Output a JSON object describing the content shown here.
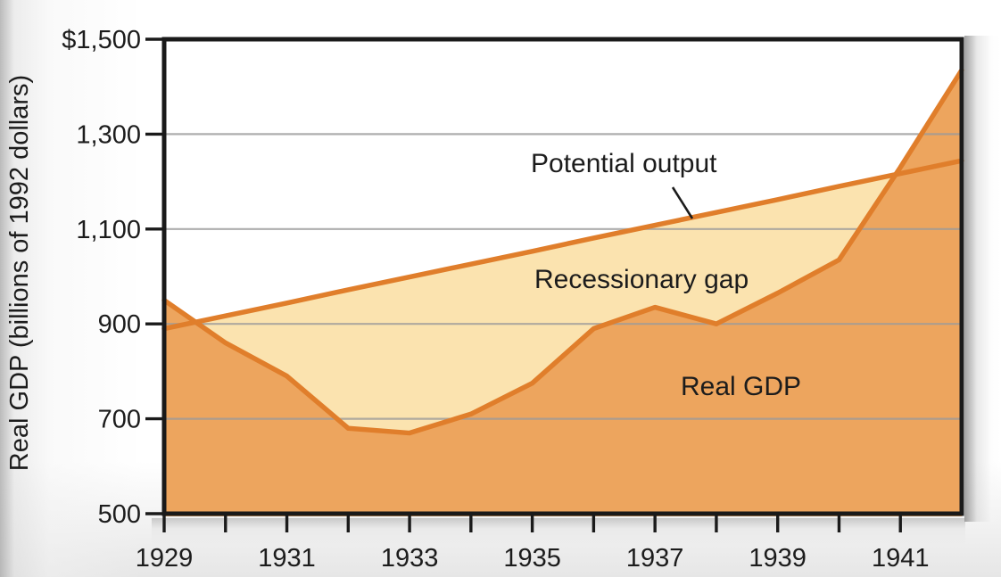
{
  "figure": {
    "y_axis_title": "Real GDP (billions of 1992 dollars)",
    "annotations": {
      "potential_output": "Potential output",
      "recessionary_gap": "Recessionary gap",
      "real_gdp": "Real GDP"
    }
  },
  "chart_data": {
    "type": "area",
    "title": "",
    "xlabel": "",
    "ylabel": "Real GDP (billions of 1992 dollars)",
    "x": [
      1929,
      1930,
      1931,
      1932,
      1933,
      1934,
      1935,
      1936,
      1937,
      1938,
      1939,
      1940,
      1941,
      1942
    ],
    "series": [
      {
        "name": "Potential output",
        "values": [
          890,
          917,
          944,
          972,
          999,
          1026,
          1053,
          1081,
          1108,
          1135,
          1162,
          1190,
          1217,
          1244
        ]
      },
      {
        "name": "Real GDP",
        "values": [
          950,
          860,
          790,
          680,
          670,
          710,
          775,
          890,
          935,
          900,
          965,
          1035,
          1230,
          1435
        ]
      }
    ],
    "xlim": [
      1929,
      1942
    ],
    "ylim": [
      500,
      1500
    ],
    "x_minor_tick_years": [
      1929,
      1930,
      1931,
      1932,
      1933,
      1934,
      1935,
      1936,
      1937,
      1938,
      1939,
      1940,
      1941
    ],
    "x_tick_labels": [
      {
        "year": 1929,
        "label": "1929"
      },
      {
        "year": 1931,
        "label": "1931"
      },
      {
        "year": 1933,
        "label": "1933"
      },
      {
        "year": 1935,
        "label": "1935"
      },
      {
        "year": 1937,
        "label": "1937"
      },
      {
        "year": 1939,
        "label": "1939"
      },
      {
        "year": 1941,
        "label": "1941"
      }
    ],
    "y_ticks": [
      {
        "value": 1500,
        "label": "$1,500"
      },
      {
        "value": 1300,
        "label": "1,300"
      },
      {
        "value": 1100,
        "label": "1,100"
      },
      {
        "value": 900,
        "label": "900"
      },
      {
        "value": 700,
        "label": "700"
      },
      {
        "value": 500,
        "label": "500"
      }
    ],
    "gridline_values": [
      1300,
      1100,
      900,
      700
    ],
    "grid": "horizontal",
    "legend_position": "none (in-plot text labels)"
  },
  "colors": {
    "line_orange": "#e07e2b",
    "fill_real_gdp": "#eda55e",
    "fill_potential_gap": "#fbe3af",
    "gridline": "#9b9b9b",
    "frame": "#1a1a1a",
    "text": "#1c1c1c",
    "pointer_line": "#1c1c1c"
  }
}
